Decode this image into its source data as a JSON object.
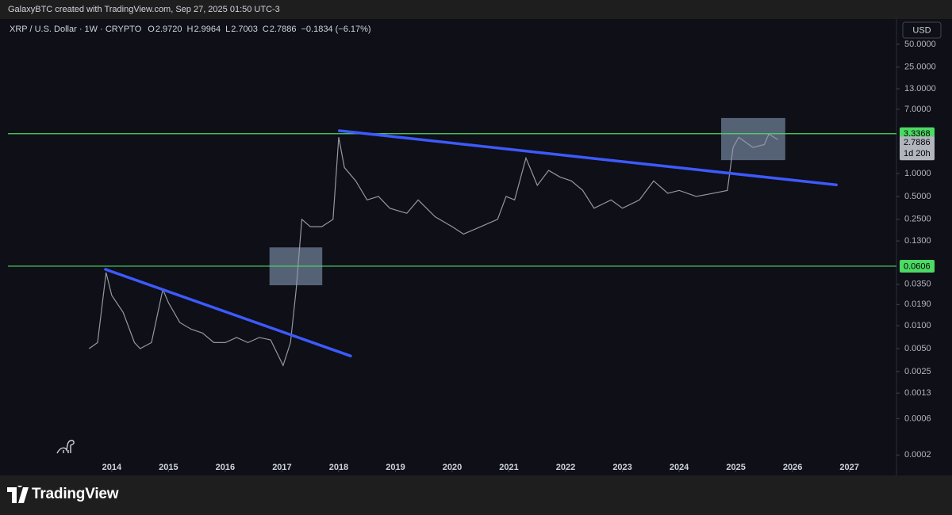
{
  "header": {
    "byline": "GalaxyBTC created with TradingView.com, Sep 27, 2025 01:50 UTC-3",
    "symbol": "XRP / U.S. Dollar · 1W · CRYPTO",
    "ohlc": [
      {
        "label": "O",
        "value": "2.9720"
      },
      {
        "label": "H",
        "value": "2.9964"
      },
      {
        "label": "L",
        "value": "2.7003"
      },
      {
        "label": "C",
        "value": "2.7886"
      }
    ],
    "change": "−0.1834 (−6.17%)",
    "currency": "USD",
    "brand": "TradingView"
  },
  "chart_data": {
    "type": "line",
    "log_y": true,
    "xlim": [
      2012.17,
      2027.83
    ],
    "ylim": [
      0.000137,
      93
    ],
    "xticks": [
      2014,
      2015,
      2016,
      2017,
      2018,
      2019,
      2020,
      2021,
      2022,
      2023,
      2024,
      2025,
      2026,
      2027
    ],
    "yticks": [
      {
        "value": 50,
        "label": "50.0000"
      },
      {
        "value": 25,
        "label": "25.0000"
      },
      {
        "value": 13,
        "label": "13.0000"
      },
      {
        "value": 7,
        "label": "7.0000"
      },
      {
        "value": 1,
        "label": "1.0000"
      },
      {
        "value": 0.5,
        "label": "0.5000"
      },
      {
        "value": 0.25,
        "label": "0.2500"
      },
      {
        "value": 0.13,
        "label": "0.1300"
      },
      {
        "value": 0.035,
        "label": "0.0350"
      },
      {
        "value": 0.019,
        "label": "0.0190"
      },
      {
        "value": 0.01,
        "label": "0.0100"
      },
      {
        "value": 0.005,
        "label": "0.0050"
      },
      {
        "value": 0.0025,
        "label": "0.0025"
      },
      {
        "value": 0.0013,
        "label": "0.0013"
      },
      {
        "value": 0.0006,
        "label": "0.0006"
      },
      {
        "value": 0.0002,
        "label": "0.0002"
      }
    ],
    "series": [
      {
        "color": "#9598a1",
        "x": [
          2013.6,
          2013.75,
          2013.9,
          2014.0,
          2014.2,
          2014.4,
          2014.5,
          2014.7,
          2014.9,
          2015.0,
          2015.2,
          2015.4,
          2015.6,
          2015.8,
          2016.0,
          2016.2,
          2016.4,
          2016.6,
          2016.8,
          2017.02,
          2017.15,
          2017.25,
          2017.35,
          2017.5,
          2017.7,
          2017.9,
          2018.0,
          2018.1,
          2018.3,
          2018.5,
          2018.7,
          2018.9,
          2019.2,
          2019.4,
          2019.7,
          2020.0,
          2020.2,
          2020.5,
          2020.8,
          2020.95,
          2021.1,
          2021.3,
          2021.5,
          2021.7,
          2021.9,
          2022.1,
          2022.3,
          2022.5,
          2022.8,
          2023.0,
          2023.3,
          2023.55,
          2023.8,
          2024.0,
          2024.3,
          2024.6,
          2024.85,
          2024.95,
          2025.05,
          2025.3,
          2025.5,
          2025.58,
          2025.74
        ],
        "values": [
          0.005,
          0.006,
          0.05,
          0.025,
          0.015,
          0.006,
          0.005,
          0.006,
          0.03,
          0.02,
          0.011,
          0.009,
          0.008,
          0.006,
          0.006,
          0.007,
          0.006,
          0.007,
          0.0065,
          0.003,
          0.006,
          0.03,
          0.25,
          0.2,
          0.2,
          0.25,
          3.0,
          1.2,
          0.8,
          0.45,
          0.5,
          0.35,
          0.3,
          0.45,
          0.27,
          0.2,
          0.16,
          0.2,
          0.25,
          0.5,
          0.45,
          1.6,
          0.7,
          1.1,
          0.9,
          0.8,
          0.6,
          0.35,
          0.45,
          0.35,
          0.45,
          0.8,
          0.55,
          0.6,
          0.5,
          0.55,
          0.6,
          2.2,
          3.0,
          2.2,
          2.4,
          3.3,
          2.7886
        ]
      }
    ],
    "hlines": [
      {
        "value": 3.3368,
        "color": "#4cd964"
      },
      {
        "value": 0.0606,
        "color": "#4cd964"
      }
    ],
    "last_price": {
      "value": 2.7886,
      "countdown": "1d 20h"
    },
    "trendlines": [
      {
        "color": "#3d5afe",
        "x": [
          2013.89,
          2018.21
        ],
        "y": [
          0.055,
          0.004
        ]
      },
      {
        "color": "#3d5afe",
        "x": [
          2018.01,
          2026.77
        ],
        "y": [
          3.65,
          0.71
        ]
      }
    ],
    "boxes": [
      {
        "x": [
          2016.78,
          2017.71
        ],
        "y": [
          0.107,
          0.034
        ]
      },
      {
        "x": [
          2024.74,
          2025.87
        ],
        "y": [
          5.37,
          1.5
        ]
      }
    ]
  }
}
